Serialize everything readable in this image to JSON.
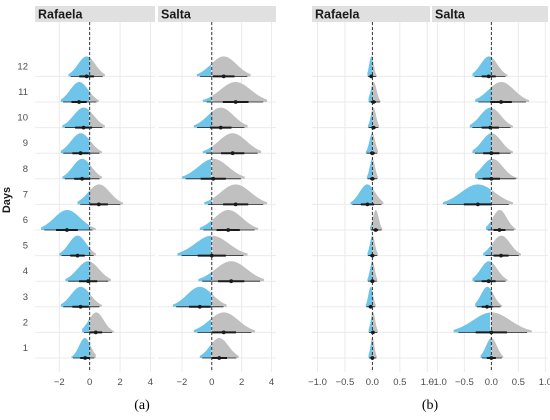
{
  "chart_data": [
    {
      "type": "ridgeline",
      "figure_label": "(a)",
      "ylabel": "Days",
      "y_categories": [
        "1",
        "2",
        "3",
        "4",
        "5",
        "6",
        "7",
        "8",
        "9",
        "10",
        "11",
        "12"
      ],
      "x_ticks": [
        -2,
        0,
        2,
        4
      ],
      "x_tick_labels": [
        "−2",
        "0",
        "2",
        "4"
      ],
      "xlim": [
        -3.6,
        4.3
      ],
      "reference_line_x": 0,
      "panels": [
        {
          "name": "Rafaela",
          "distributions": [
            {
              "day": 1,
              "effect": -0.3,
              "negative_part": [
                -1.2,
                0.0
              ],
              "positive_part": [
                0.0,
                0.4
              ]
            },
            {
              "day": 2,
              "effect": 0.4,
              "negative_part": [
                -0.5,
                0.0
              ],
              "positive_part": [
                0.0,
                1.6
              ]
            },
            {
              "day": 3,
              "effect": -0.6,
              "negative_part": [
                -1.9,
                0.0
              ],
              "positive_part": [
                0.0,
                0.8
              ]
            },
            {
              "day": 4,
              "effect": -0.1,
              "negative_part": [
                -1.6,
                0.0
              ],
              "positive_part": [
                0.0,
                1.4
              ]
            },
            {
              "day": 5,
              "effect": -0.8,
              "negative_part": [
                -2.0,
                0.0
              ],
              "positive_part": [
                0.0,
                0.4
              ]
            },
            {
              "day": 6,
              "effect": -1.5,
              "negative_part": [
                -3.2,
                0.0
              ],
              "positive_part": [
                0.0,
                0.4
              ]
            },
            {
              "day": 7,
              "effect": 0.6,
              "negative_part": [
                -0.8,
                0.0
              ],
              "positive_part": [
                0.0,
                2.2
              ]
            },
            {
              "day": 8,
              "effect": -0.5,
              "negative_part": [
                -1.8,
                0.0
              ],
              "positive_part": [
                0.0,
                0.8
              ]
            },
            {
              "day": 9,
              "effect": -0.6,
              "negative_part": [
                -1.9,
                0.0
              ],
              "positive_part": [
                0.0,
                0.8
              ]
            },
            {
              "day": 10,
              "effect": -0.4,
              "negative_part": [
                -1.8,
                0.0
              ],
              "positive_part": [
                0.0,
                1.0
              ]
            },
            {
              "day": 11,
              "effect": -0.7,
              "negative_part": [
                -1.9,
                0.0
              ],
              "positive_part": [
                0.0,
                0.6
              ]
            },
            {
              "day": 12,
              "effect": -0.2,
              "negative_part": [
                -1.4,
                0.0
              ],
              "positive_part": [
                0.0,
                1.0
              ]
            }
          ]
        },
        {
          "name": "Salta",
          "distributions": [
            {
              "day": 1,
              "effect": 0.5,
              "negative_part": [
                -0.8,
                0.0
              ],
              "positive_part": [
                0.0,
                1.8
              ]
            },
            {
              "day": 2,
              "effect": 0.8,
              "negative_part": [
                -1.2,
                0.0
              ],
              "positive_part": [
                0.0,
                2.9
              ]
            },
            {
              "day": 3,
              "effect": -0.8,
              "negative_part": [
                -2.6,
                0.0
              ],
              "positive_part": [
                0.0,
                1.0
              ]
            },
            {
              "day": 4,
              "effect": 1.3,
              "negative_part": [
                -0.9,
                0.0
              ],
              "positive_part": [
                0.0,
                3.5
              ]
            },
            {
              "day": 5,
              "effect": 0.0,
              "negative_part": [
                -2.3,
                0.0
              ],
              "positive_part": [
                0.0,
                2.4
              ]
            },
            {
              "day": 6,
              "effect": 1.1,
              "negative_part": [
                -0.8,
                0.0
              ],
              "positive_part": [
                0.0,
                3.1
              ]
            },
            {
              "day": 7,
              "effect": 1.6,
              "negative_part": [
                -0.5,
                0.0
              ],
              "positive_part": [
                0.0,
                3.7
              ]
            },
            {
              "day": 8,
              "effect": 0.1,
              "negative_part": [
                -2.0,
                0.0
              ],
              "positive_part": [
                0.0,
                2.2
              ]
            },
            {
              "day": 9,
              "effect": 1.4,
              "negative_part": [
                -0.6,
                0.0
              ],
              "positive_part": [
                0.0,
                3.3
              ]
            },
            {
              "day": 10,
              "effect": 0.6,
              "negative_part": [
                -1.2,
                0.0
              ],
              "positive_part": [
                0.0,
                2.4
              ]
            },
            {
              "day": 11,
              "effect": 1.6,
              "negative_part": [
                -0.6,
                0.0
              ],
              "positive_part": [
                0.0,
                3.7
              ]
            },
            {
              "day": 12,
              "effect": 0.8,
              "negative_part": [
                -1.0,
                0.0
              ],
              "positive_part": [
                0.0,
                2.6
              ]
            }
          ]
        }
      ],
      "colors": {
        "negative": "#67c1e8",
        "positive": "#bdbdbd",
        "interval": "#1a1a1a",
        "strip_bg": "#e0e0e0",
        "gridline": "#ebebeb"
      }
    },
    {
      "type": "ridgeline",
      "figure_label": "(b)",
      "ylabel": "",
      "y_categories": [
        "1",
        "2",
        "3",
        "4",
        "5",
        "6",
        "7",
        "8",
        "9",
        "10",
        "11",
        "12"
      ],
      "x_ticks": [
        -1.0,
        -0.5,
        0.0,
        0.5,
        1.0
      ],
      "x_tick_labels": [
        "−1.0",
        "−0.5",
        "0.0",
        "0.5",
        "1.0"
      ],
      "xlim": [
        -1.1,
        1.05
      ],
      "reference_line_x": 0,
      "panels": [
        {
          "name": "Rafaela",
          "distributions": [
            {
              "day": 1,
              "effect": 0.0,
              "negative_part": [
                -0.07,
                0.0
              ],
              "positive_part": [
                0.0,
                0.08
              ]
            },
            {
              "day": 2,
              "effect": 0.01,
              "negative_part": [
                -0.07,
                0.0
              ],
              "positive_part": [
                0.0,
                0.1
              ]
            },
            {
              "day": 3,
              "effect": -0.03,
              "negative_part": [
                -0.12,
                0.0
              ],
              "positive_part": [
                0.0,
                0.06
              ]
            },
            {
              "day": 4,
              "effect": 0.0,
              "negative_part": [
                -0.09,
                0.0
              ],
              "positive_part": [
                0.0,
                0.09
              ]
            },
            {
              "day": 5,
              "effect": 0.0,
              "negative_part": [
                -0.09,
                0.0
              ],
              "positive_part": [
                0.0,
                0.1
              ]
            },
            {
              "day": 6,
              "effect": 0.06,
              "negative_part": [
                -0.04,
                0.0
              ],
              "positive_part": [
                0.0,
                0.18
              ]
            },
            {
              "day": 7,
              "effect": -0.09,
              "negative_part": [
                -0.4,
                0.0
              ],
              "positive_part": [
                0.0,
                0.2
              ]
            },
            {
              "day": 8,
              "effect": 0.0,
              "negative_part": [
                -0.1,
                0.0
              ],
              "positive_part": [
                0.0,
                0.1
              ]
            },
            {
              "day": 9,
              "effect": 0.0,
              "negative_part": [
                -0.12,
                0.0
              ],
              "positive_part": [
                0.0,
                0.1
              ]
            },
            {
              "day": 10,
              "effect": 0.02,
              "negative_part": [
                -0.08,
                0.0
              ],
              "positive_part": [
                0.0,
                0.12
              ]
            },
            {
              "day": 11,
              "effect": 0.02,
              "negative_part": [
                -0.07,
                0.0
              ],
              "positive_part": [
                0.0,
                0.15
              ]
            },
            {
              "day": 12,
              "effect": -0.02,
              "negative_part": [
                -0.09,
                0.0
              ],
              "positive_part": [
                0.0,
                0.08
              ]
            }
          ]
        },
        {
          "name": "Salta",
          "distributions": [
            {
              "day": 1,
              "effect": 0.0,
              "negative_part": [
                -0.2,
                0.0
              ],
              "positive_part": [
                0.0,
                0.22
              ]
            },
            {
              "day": 2,
              "effect": 0.0,
              "negative_part": [
                -0.7,
                0.0
              ],
              "positive_part": [
                0.0,
                0.75
              ]
            },
            {
              "day": 3,
              "effect": -0.08,
              "negative_part": [
                -0.3,
                0.0
              ],
              "positive_part": [
                0.0,
                0.2
              ]
            },
            {
              "day": 4,
              "effect": -0.05,
              "negative_part": [
                -0.35,
                0.0
              ],
              "positive_part": [
                0.0,
                0.3
              ]
            },
            {
              "day": 5,
              "effect": 0.18,
              "negative_part": [
                -0.15,
                0.0
              ],
              "positive_part": [
                0.0,
                0.55
              ]
            },
            {
              "day": 6,
              "effect": 0.15,
              "negative_part": [
                -0.1,
                0.0
              ],
              "positive_part": [
                0.0,
                0.45
              ]
            },
            {
              "day": 7,
              "effect": -0.25,
              "negative_part": [
                -0.9,
                0.0
              ],
              "positive_part": [
                0.0,
                0.4
              ]
            },
            {
              "day": 8,
              "effect": 0.0,
              "negative_part": [
                -0.3,
                0.0
              ],
              "positive_part": [
                0.0,
                0.5
              ]
            },
            {
              "day": 9,
              "effect": 0.0,
              "negative_part": [
                -0.35,
                0.0
              ],
              "positive_part": [
                0.0,
                0.4
              ]
            },
            {
              "day": 10,
              "effect": -0.02,
              "negative_part": [
                -0.4,
                0.0
              ],
              "positive_part": [
                0.0,
                0.4
              ]
            },
            {
              "day": 11,
              "effect": 0.18,
              "negative_part": [
                -0.3,
                0.0
              ],
              "positive_part": [
                0.0,
                0.7
              ]
            },
            {
              "day": 12,
              "effect": -0.05,
              "negative_part": [
                -0.35,
                0.0
              ],
              "positive_part": [
                0.0,
                0.3
              ]
            }
          ]
        }
      ],
      "colors": {
        "negative": "#67c1e8",
        "positive": "#bdbdbd",
        "interval": "#1a1a1a",
        "strip_bg": "#e0e0e0",
        "gridline": "#ebebeb"
      }
    }
  ]
}
